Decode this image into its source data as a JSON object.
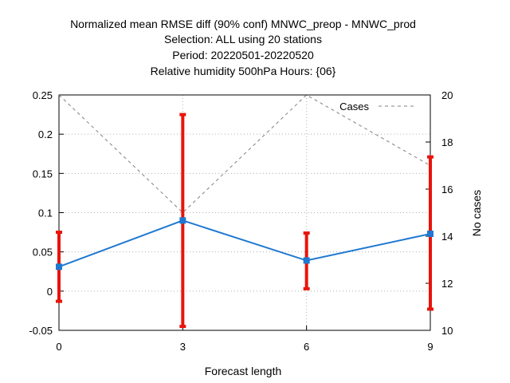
{
  "chart_data": {
    "type": "line",
    "title_lines": [
      "Normalized mean RMSE diff (90% conf) MNWC_preop - MNWC_prod",
      "Selection: ALL using    20 stations",
      "Period: 20220501-20220520",
      "Relative humidity 500hPa   Hours: {06}"
    ],
    "xlabel": "Forecast length",
    "ylabel": "",
    "y2label": "No cases",
    "x": [
      0,
      3,
      6,
      9
    ],
    "xlim": [
      0,
      9
    ],
    "xticks": [
      "0",
      "3",
      "6",
      "9"
    ],
    "ylim": [
      -0.05,
      0.25
    ],
    "yticks": [
      "-0.05",
      "0",
      "0.05",
      "0.1",
      "0.15",
      "0.2",
      "0.25"
    ],
    "y2lim": [
      10,
      20
    ],
    "y2ticks": [
      "10",
      "12",
      "14",
      "16",
      "18",
      "20"
    ],
    "grid": true,
    "legend_position": "top-right",
    "series": [
      {
        "name": "",
        "color": "#1f78d1",
        "axis": "left",
        "values": [
          0.031,
          0.09,
          0.039,
          0.073
        ],
        "error_low": [
          -0.013,
          -0.045,
          0.003,
          -0.023
        ],
        "error_high": [
          0.075,
          0.225,
          0.074,
          0.171
        ],
        "error_color": "#e8140c"
      },
      {
        "name": "Cases",
        "color": "#808080",
        "axis": "right",
        "style": "dashed",
        "values": [
          20,
          15,
          20,
          17
        ]
      }
    ]
  }
}
